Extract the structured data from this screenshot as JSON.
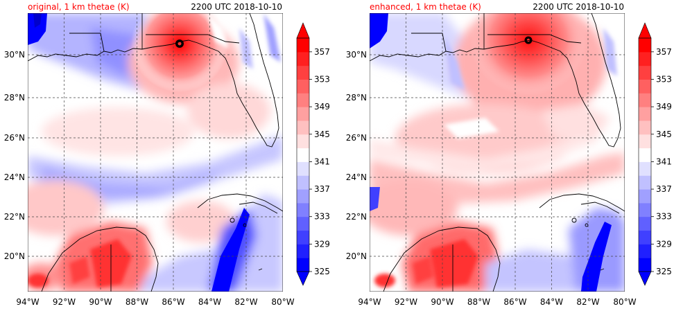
{
  "chart_data": [
    {
      "type": "heatmap",
      "title_left": "original, 1 km thetae (K)",
      "title_right": "2200 UTC 2018-10-10",
      "variable": "1 km equivalent potential temperature (thetae)",
      "units": "K",
      "longitude_range": [
        -94,
        -80
      ],
      "latitude_range": [
        18,
        32
      ],
      "x_ticks": [
        "94°W",
        "92°W",
        "90°W",
        "88°W",
        "86°W",
        "84°W",
        "82°W",
        "80°W"
      ],
      "y_ticks": [
        "20°N",
        "22°N",
        "24°N",
        "26°N",
        "28°N",
        "30°N"
      ],
      "grid": true,
      "storm_center": {
        "lon": -85.6,
        "lat": 30.55
      },
      "colorbar_ticks": [
        "325",
        "329",
        "333",
        "337",
        "341",
        "345",
        "349",
        "353",
        "357"
      ],
      "colorbar_levels": [
        325,
        327,
        329,
        331,
        333,
        335,
        337,
        339,
        341,
        343,
        345,
        347,
        349,
        351,
        353,
        355,
        357,
        359
      ],
      "colorbar_extend": "both"
    },
    {
      "type": "heatmap",
      "title_left": "enhanced, 1 km thetae (K)",
      "title_right": "2200 UTC 2018-10-10",
      "variable": "1 km equivalent potential temperature (thetae)",
      "units": "K",
      "longitude_range": [
        -94,
        -80
      ],
      "latitude_range": [
        18,
        32
      ],
      "x_ticks": [
        "94°W",
        "92°W",
        "90°W",
        "88°W",
        "86°W",
        "84°W",
        "82°W",
        "80°W"
      ],
      "y_ticks": [
        "20°N",
        "22°N",
        "24°N",
        "26°N",
        "28°N",
        "30°N"
      ],
      "grid": true,
      "storm_center": {
        "lon": -85.3,
        "lat": 30.75
      },
      "colorbar_ticks": [
        "325",
        "329",
        "333",
        "337",
        "341",
        "345",
        "349",
        "353",
        "357"
      ],
      "colorbar_levels": [
        325,
        327,
        329,
        331,
        333,
        335,
        337,
        339,
        341,
        343,
        345,
        347,
        349,
        351,
        353,
        355,
        357,
        359
      ],
      "colorbar_extend": "both"
    }
  ],
  "colors": {
    "title_red": "#ff0000",
    "text": "#000000",
    "grid": "#555555",
    "coast": "#000000",
    "ramp": [
      "#0000ff",
      "#2020ff",
      "#4040ff",
      "#6060ff",
      "#8080ff",
      "#a0a0ff",
      "#c0c0ff",
      "#e0e0ff",
      "#ffffff",
      "#ffe0e0",
      "#ffc0c0",
      "#ffa0a0",
      "#ff8080",
      "#ff6060",
      "#ff4040",
      "#ff2020",
      "#ff0000"
    ]
  }
}
